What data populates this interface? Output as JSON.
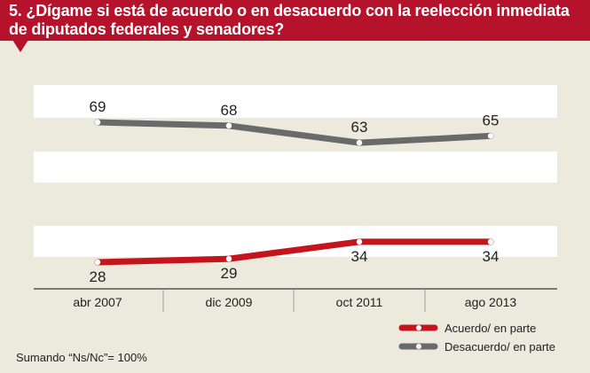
{
  "header": {
    "title": "5. ¿Dígame si está de acuerdo o en desacuerdo con la reelección inmediata de diputados federales y senadores?"
  },
  "footnote": "Sumando “Ns/Nc”= 100%",
  "colors": {
    "accent": "#b5132b",
    "acuerdo": "#c4151c",
    "desacuerdo": "#6b6a6a",
    "background": "#ece9dd",
    "band": "#ffffff"
  },
  "chart_data": {
    "type": "line",
    "categories": [
      "abr 2007",
      "dic 2009",
      "oct 2011",
      "ago 2013"
    ],
    "series": [
      {
        "name": "Acuerdo/ en parte",
        "values": [
          28,
          29,
          34,
          34
        ]
      },
      {
        "name": "Desacuerdo/ en parte",
        "values": [
          69,
          68,
          63,
          65
        ]
      }
    ],
    "title": "",
    "xlabel": "",
    "ylabel": "",
    "legend_position": "bottom-right",
    "grid": false
  }
}
